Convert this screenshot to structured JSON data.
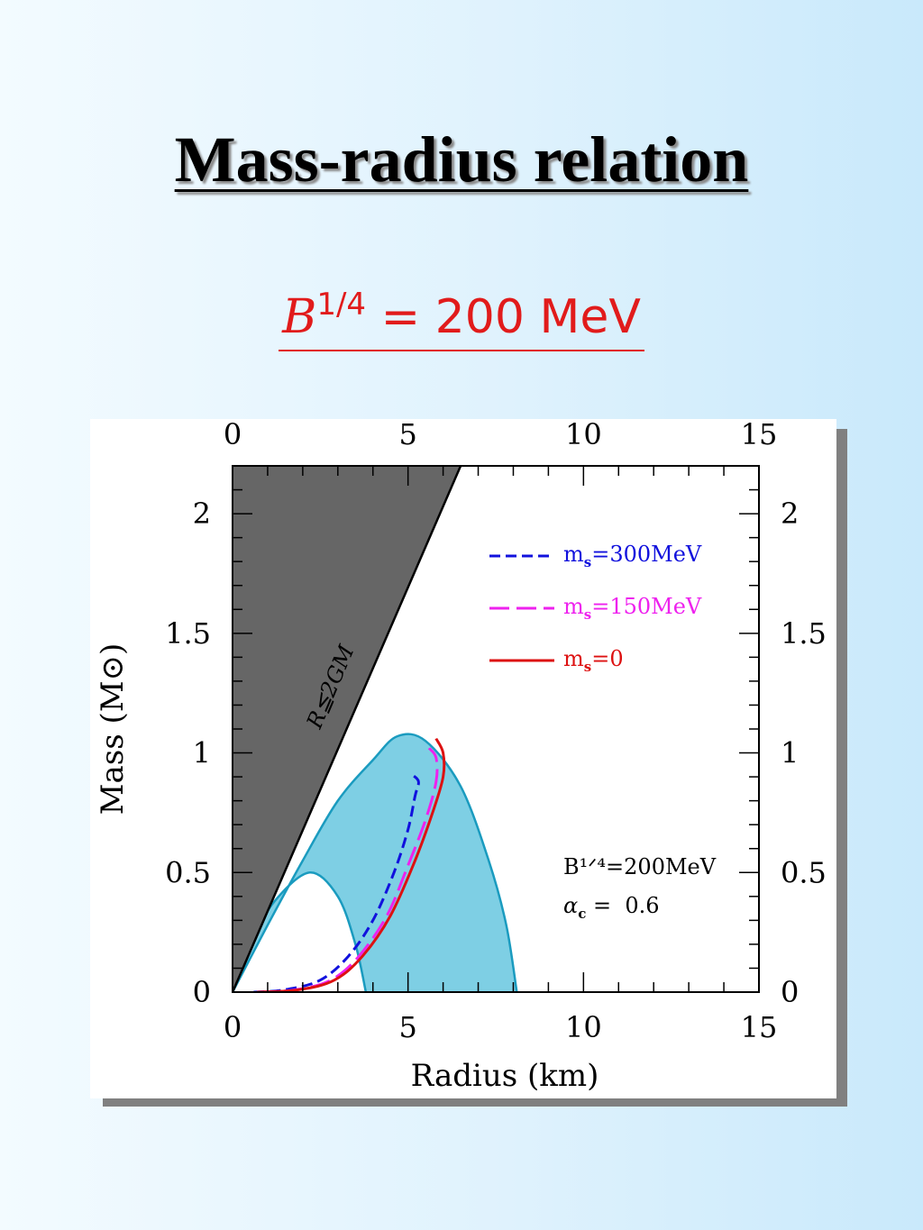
{
  "slide": {
    "title": "Mass-radius relation",
    "subtitle_b": "B",
    "subtitle_exp": "1/4",
    "subtitle_rest": "= 200 MeV"
  },
  "chart_data": {
    "type": "line",
    "xlabel": "Radius (km)",
    "ylabel": "Mass (M⊙)",
    "xlim": [
      0,
      15
    ],
    "ylim": [
      0,
      2.2
    ],
    "x_ticks": [
      "0",
      "5",
      "10",
      "15"
    ],
    "y_ticks": [
      "0",
      "0.5",
      "1",
      "1.5",
      "2"
    ],
    "x_tick_values": [
      0,
      5,
      10,
      15
    ],
    "y_tick_values": [
      0,
      0.5,
      1,
      1.5,
      2
    ],
    "grid": false,
    "legend_position": "top-right",
    "region_label": "R≦2GM",
    "annotation_line1": "B¹ᐟ⁴=200MeV",
    "annotation_line2_symbol": "α",
    "annotation_line2_sub": "c",
    "annotation_line2_value": " =  0.6",
    "excluded_region": {
      "color": "#666666",
      "boundary": [
        [
          0,
          0
        ],
        [
          6.5,
          2.2
        ]
      ]
    },
    "band": {
      "color": "#7ecfe4",
      "outer": [
        [
          0,
          0
        ],
        [
          1,
          0.28
        ],
        [
          2,
          0.55
        ],
        [
          3,
          0.8
        ],
        [
          4,
          0.97
        ],
        [
          4.7,
          1.07
        ],
        [
          5.5,
          1.05
        ],
        [
          6.5,
          0.86
        ],
        [
          7.3,
          0.55
        ],
        [
          7.8,
          0.28
        ],
        [
          8.1,
          0
        ]
      ],
      "inner": [
        [
          0,
          0
        ],
        [
          0.5,
          0.2
        ],
        [
          1.2,
          0.38
        ],
        [
          2.2,
          0.5
        ],
        [
          3,
          0.4
        ],
        [
          3.5,
          0.2
        ],
        [
          3.8,
          0
        ]
      ]
    },
    "series": [
      {
        "name": "m_s=300MeV",
        "legend_label": "m",
        "legend_sub": "s",
        "legend_rest": "=300MeV",
        "color": "#1111dd",
        "dash": "12,6",
        "points": [
          [
            0.6,
            0
          ],
          [
            1.5,
            0.01
          ],
          [
            2.5,
            0.05
          ],
          [
            3.3,
            0.15
          ],
          [
            4.0,
            0.3
          ],
          [
            4.6,
            0.5
          ],
          [
            5.0,
            0.68
          ],
          [
            5.2,
            0.82
          ],
          [
            5.3,
            0.88
          ],
          [
            5.1,
            0.91
          ]
        ]
      },
      {
        "name": "m_s=150MeV",
        "legend_label": "m",
        "legend_sub": "s",
        "legend_rest": "=150MeV",
        "color": "#ee22ee",
        "dash": "22,8",
        "points": [
          [
            0.7,
            0
          ],
          [
            1.8,
            0.01
          ],
          [
            2.8,
            0.05
          ],
          [
            3.6,
            0.15
          ],
          [
            4.4,
            0.32
          ],
          [
            5.0,
            0.53
          ],
          [
            5.5,
            0.72
          ],
          [
            5.8,
            0.88
          ],
          [
            5.8,
            0.98
          ],
          [
            5.6,
            1.02
          ]
        ]
      },
      {
        "name": "m_s=0",
        "legend_label": "m",
        "legend_sub": "s",
        "legend_rest": "=0",
        "color": "#dd1111",
        "dash": "",
        "points": [
          [
            0.7,
            0
          ],
          [
            1.9,
            0.01
          ],
          [
            2.9,
            0.05
          ],
          [
            3.7,
            0.15
          ],
          [
            4.5,
            0.32
          ],
          [
            5.2,
            0.55
          ],
          [
            5.7,
            0.75
          ],
          [
            6.0,
            0.9
          ],
          [
            6.0,
            1.0
          ],
          [
            5.8,
            1.06
          ]
        ]
      }
    ]
  }
}
